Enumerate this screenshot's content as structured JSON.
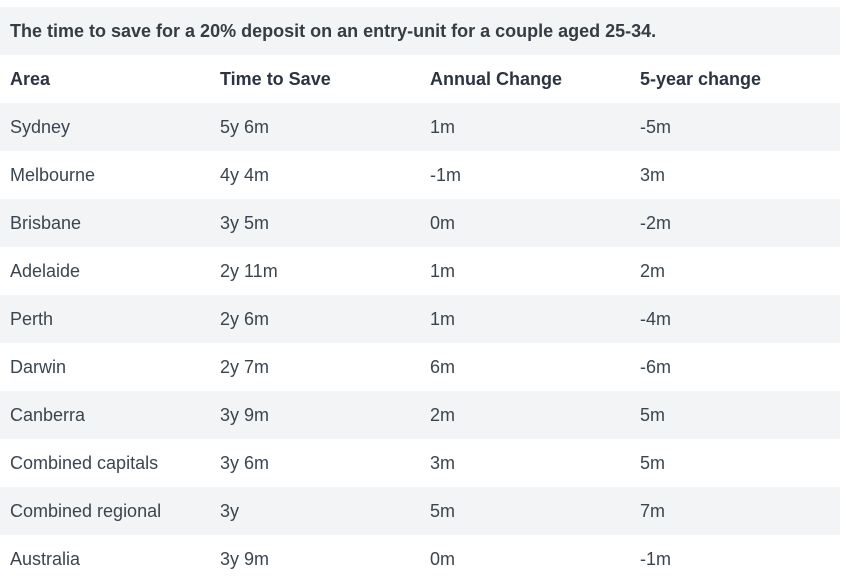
{
  "caption": "The time to save for a 20% deposit on an entry-unit for a couple aged 25-34.",
  "columns": [
    "Area",
    "Time to Save",
    "Annual Change",
    "5-year change"
  ],
  "rows": [
    [
      "Sydney",
      "5y 6m",
      "1m",
      "-5m"
    ],
    [
      "Melbourne",
      "4y 4m",
      "-1m",
      "3m"
    ],
    [
      "Brisbane",
      "3y 5m",
      "0m",
      "-2m"
    ],
    [
      "Adelaide",
      "2y 11m",
      "1m",
      "2m"
    ],
    [
      "Perth",
      "2y 6m",
      "1m",
      "-4m"
    ],
    [
      "Darwin",
      "2y 7m",
      "6m",
      "-6m"
    ],
    [
      "Canberra",
      "3y 9m",
      "2m",
      "5m"
    ],
    [
      "Combined capitals",
      "3y 6m",
      "3m",
      "5m"
    ],
    [
      "Combined regional",
      "3y",
      "5m",
      "7m"
    ],
    [
      "Australia",
      "3y 9m",
      "0m",
      "-1m"
    ]
  ]
}
